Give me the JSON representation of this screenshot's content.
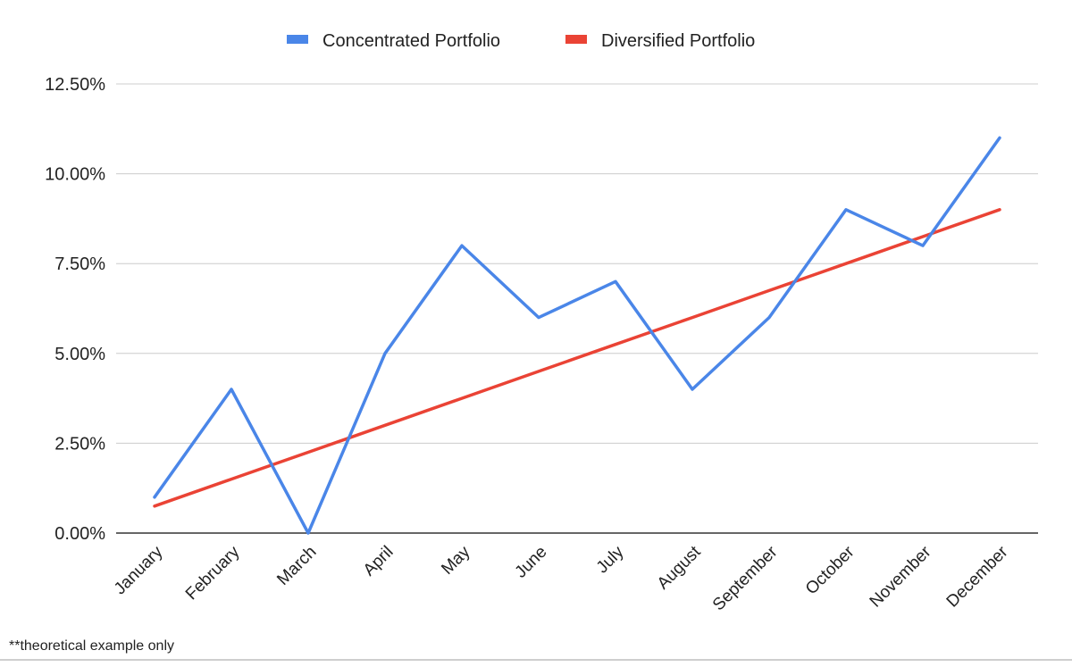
{
  "chart_data": {
    "type": "line",
    "categories": [
      "January",
      "February",
      "March",
      "April",
      "May",
      "June",
      "July",
      "August",
      "September",
      "October",
      "November",
      "December"
    ],
    "series": [
      {
        "name": "Concentrated Portfolio",
        "color": "#4a86e8",
        "values": [
          1.0,
          4.0,
          0.0,
          5.0,
          8.0,
          6.0,
          7.0,
          4.0,
          6.0,
          9.0,
          8.0,
          11.0
        ]
      },
      {
        "name": "Diversified Portfolio",
        "color": "#ea4335",
        "values": [
          0.75,
          1.5,
          2.25,
          3.0,
          3.75,
          4.5,
          5.25,
          6.0,
          6.75,
          7.5,
          8.25,
          9.0
        ]
      }
    ],
    "yticks": [
      0,
      2.5,
      5,
      7.5,
      10,
      12.5
    ],
    "ytick_labels": [
      "0.00%",
      "2.50%",
      "5.00%",
      "7.50%",
      "10.00%",
      "12.50%"
    ],
    "ylim": [
      0,
      12.5
    ],
    "grid": true,
    "legend_position": "top-center",
    "footnote": "**theoretical example only"
  }
}
